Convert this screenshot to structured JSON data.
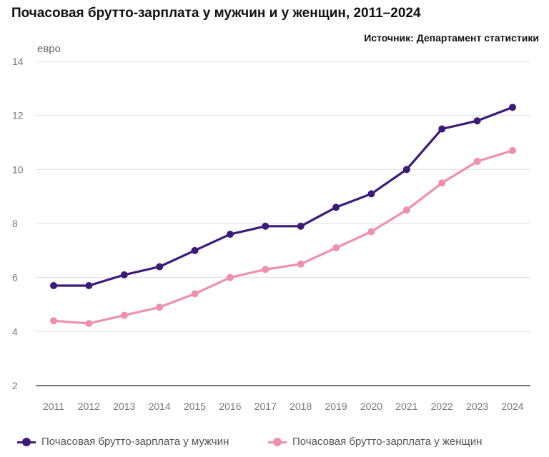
{
  "title": "Почасовая брутто-зарплата у мужчин и у женщин, 2011–2024",
  "source": "Источник: Департамент статистики",
  "chart_data": {
    "type": "line",
    "title": "Почасовая брутто-зарплата у мужчин и у женщин, 2011–2024",
    "ylabel": "евро",
    "xlabel": "",
    "ylim": [
      2,
      14
    ],
    "yticks": [
      2,
      4,
      6,
      8,
      10,
      12,
      14
    ],
    "grid": true,
    "legend_position": "bottom",
    "x": [
      2011,
      2012,
      2013,
      2014,
      2015,
      2016,
      2017,
      2018,
      2019,
      2020,
      2021,
      2022,
      2023,
      2024
    ],
    "series": [
      {
        "name": "Почасовая брутто-зарплата у мужчин",
        "color": "#3d1a78",
        "values": [
          5.7,
          5.7,
          6.1,
          6.4,
          7.0,
          7.6,
          7.9,
          7.9,
          8.6,
          9.1,
          10.0,
          11.5,
          11.8,
          12.3
        ]
      },
      {
        "name": "Почасовая брутто-зарплата у женщин",
        "color": "#ef8fb0",
        "values": [
          4.4,
          4.3,
          4.6,
          4.9,
          5.4,
          6.0,
          6.3,
          6.5,
          7.1,
          7.7,
          8.5,
          9.5,
          10.3,
          10.7
        ]
      }
    ]
  }
}
